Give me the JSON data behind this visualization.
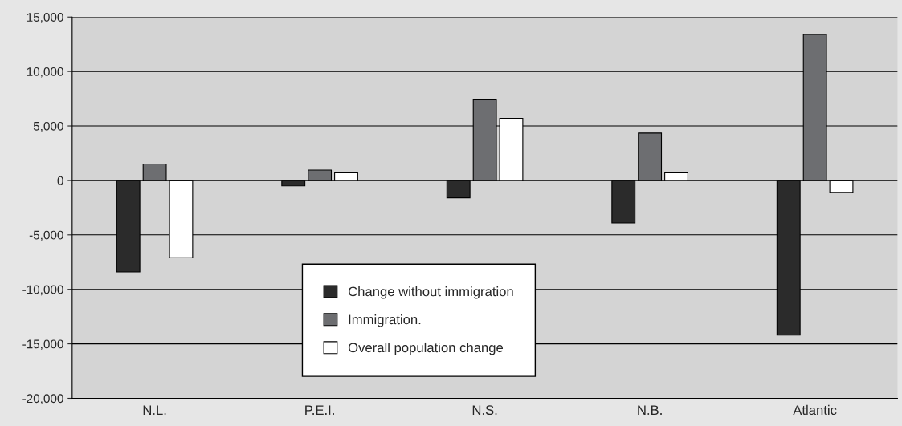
{
  "chart_data": {
    "type": "bar",
    "categories": [
      "N.L.",
      "P.E.I.",
      "N.S.",
      "N.B.",
      "Atlantic"
    ],
    "series": [
      {
        "name": "Change without immigration",
        "color": "#2b2b2b",
        "values": [
          -8400,
          -500,
          -1600,
          -3900,
          -14200
        ]
      },
      {
        "name": "Immigration.",
        "color": "#6d6e71",
        "values": [
          1500,
          950,
          7400,
          4350,
          13400
        ]
      },
      {
        "name": "Overall population change",
        "color": "#ffffff",
        "values": [
          -7100,
          700,
          5700,
          700,
          -1100
        ]
      }
    ],
    "ylim": [
      -20000,
      15000
    ],
    "yticks": [
      {
        "value": -20000,
        "label": "-20,000"
      },
      {
        "value": -15000,
        "label": "-15,000"
      },
      {
        "value": -10000,
        "label": "-10,000"
      },
      {
        "value": -5000,
        "label": "-5,000"
      },
      0,
      {
        "value": 5000,
        "label": "5,000"
      },
      {
        "value": 10000,
        "label": "10,000"
      },
      {
        "value": 15000,
        "label": "15,000"
      }
    ],
    "grid": "y",
    "legend": "bottom"
  }
}
